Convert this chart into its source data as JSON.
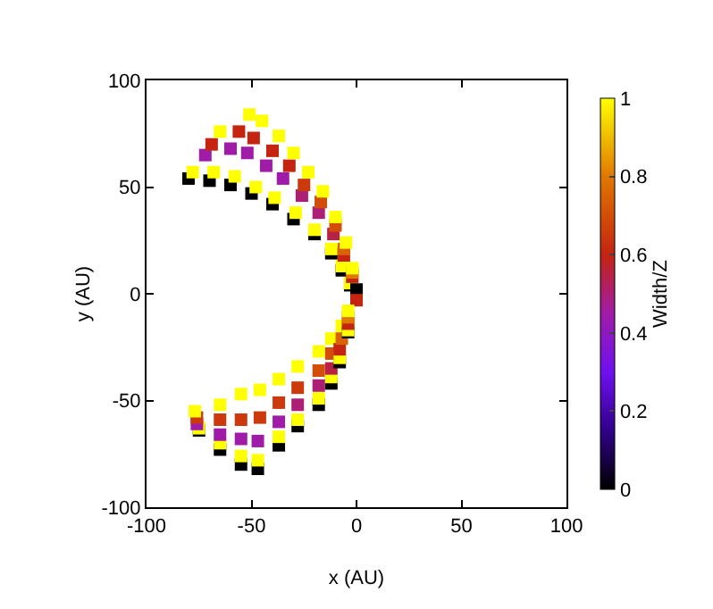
{
  "chart_data": {
    "type": "scatter",
    "marker": "square",
    "xlabel": "x (AU)",
    "ylabel": "y (AU)",
    "clabel": "Width/Z",
    "xlim": [
      -100,
      100
    ],
    "ylim": [
      -100,
      100
    ],
    "xticks": [
      -100,
      -50,
      0,
      50,
      100
    ],
    "yticks": [
      -100,
      -50,
      0,
      50,
      100
    ],
    "clim": [
      0,
      1
    ],
    "cticks": [
      0,
      0.2,
      0.4,
      0.6,
      0.8,
      1
    ],
    "x": [
      -80,
      -78,
      -72,
      -69,
      -65,
      -70,
      -68,
      -60,
      -56,
      -51,
      -60,
      -58,
      -52,
      -49,
      -45,
      -50,
      -48,
      -43,
      -40,
      -37,
      -40,
      -39,
      -35,
      -32,
      -30,
      -30,
      -29,
      -26,
      -25,
      -23,
      -20,
      -20,
      -18,
      -17,
      -16,
      -12,
      -12,
      -11,
      -10,
      -10,
      -7,
      -7,
      -6,
      -6,
      -5,
      -3,
      -3,
      -2,
      -2,
      -2,
      0,
      0,
      -75,
      -75,
      -76,
      -76,
      -77,
      -65,
      -65,
      -65,
      -65,
      -65,
      -55,
      -55,
      -55,
      -55,
      -55,
      -47,
      -47,
      -47,
      -46,
      -46,
      -37,
      -37,
      -37,
      -37,
      -37,
      -28,
      -28,
      -28,
      -28,
      -28,
      -18,
      -18,
      -18,
      -18,
      -18,
      -12,
      -12,
      -12,
      -12,
      -12,
      -8,
      -8,
      -8,
      -7,
      -7,
      -4,
      -4,
      -4,
      -4,
      -4
    ],
    "values": [
      54,
      57,
      65,
      70,
      76,
      53,
      57,
      68,
      76,
      84,
      51,
      55,
      66,
      73,
      81,
      47,
      50,
      60,
      67,
      74,
      42,
      45,
      54,
      60,
      66,
      35,
      38,
      46,
      51,
      57,
      28,
      30,
      38,
      43,
      48,
      19,
      21,
      28,
      32,
      36,
      11,
      13,
      18,
      21,
      24,
      4,
      5,
      8,
      10,
      12,
      2,
      -3,
      -64,
      -63,
      -61,
      -58,
      -55,
      -73,
      -70,
      -66,
      -59,
      -52,
      -80,
      -76,
      -68,
      -59,
      -47,
      -82,
      -78,
      -69,
      -58,
      -45,
      -71,
      -67,
      -60,
      -51,
      -40,
      -62,
      -59,
      -52,
      -44,
      -34,
      -52,
      -49,
      -43,
      -36,
      -27,
      -42,
      -39,
      -35,
      -28,
      -21,
      -32,
      -30,
      -26,
      -21,
      -15,
      -18,
      -17,
      -14,
      -11,
      -8
    ],
    "cvalues": [
      0,
      1,
      0.45,
      0.6,
      1,
      0,
      1,
      0.45,
      0.6,
      1,
      0,
      1,
      0.45,
      0.6,
      1,
      0,
      1,
      0.45,
      0.6,
      1,
      0,
      1,
      0.45,
      0.6,
      1,
      0,
      1,
      0.5,
      0.65,
      1,
      0,
      1,
      0.5,
      0.7,
      1,
      0,
      1,
      0.55,
      0.7,
      1,
      0,
      1,
      0.6,
      0.75,
      1,
      0,
      1,
      0.6,
      0.8,
      1,
      0,
      0.6,
      0,
      1,
      0.45,
      0.65,
      1,
      0,
      1,
      0.45,
      0.65,
      1,
      0,
      1,
      0.45,
      0.65,
      1,
      0,
      1,
      0.45,
      0.65,
      1,
      0,
      1,
      0.45,
      0.65,
      1,
      0,
      1,
      0.5,
      0.65,
      1,
      0,
      1,
      0.5,
      0.7,
      1,
      0,
      1,
      0.55,
      0.7,
      1,
      0,
      1,
      0.6,
      0.75,
      1,
      0,
      1,
      0.6,
      0.8,
      1
    ]
  }
}
